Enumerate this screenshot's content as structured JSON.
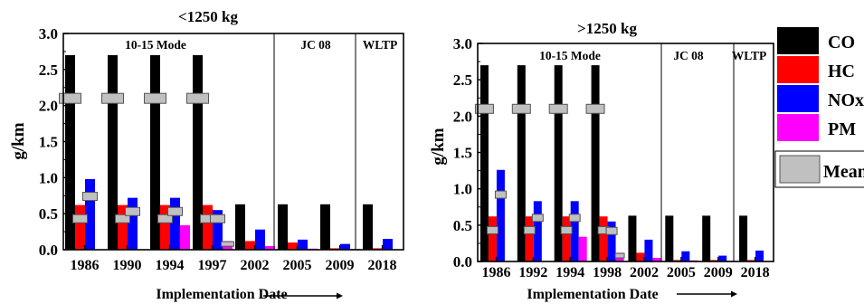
{
  "colors": {
    "CO": "#000000",
    "HC": "#ff0000",
    "NOx": "#0000ff",
    "PM": "#ff00ff",
    "Mean": "#c0c0c0"
  },
  "legend": {
    "entries": [
      {
        "key": "CO",
        "label": "CO"
      },
      {
        "key": "HC",
        "label": "HC"
      },
      {
        "key": "NOx",
        "label": "NOx"
      },
      {
        "key": "PM",
        "label": "PM"
      },
      {
        "key": "Mean",
        "label": "Mean"
      }
    ]
  },
  "chart_data": [
    {
      "type": "bar",
      "title": "<1250 kg",
      "ylabel": "g/km",
      "xlabel": "Implementation Date",
      "ylim": [
        0,
        3.0
      ],
      "yticks": [
        "0.0",
        "0.5",
        "1.0",
        "1.5",
        "2.0",
        "2.5",
        "3.0"
      ],
      "categories": [
        "1986",
        "1990",
        "1994",
        "1997",
        "2002",
        "2005",
        "2009",
        "2018"
      ],
      "regions": [
        {
          "label": "10-15 Mode"
        },
        {
          "label": "JC 08"
        },
        {
          "label": "WLTP"
        }
      ],
      "series": [
        {
          "name": "CO",
          "values": [
            2.7,
            2.7,
            2.7,
            2.7,
            0.63,
            0.63,
            0.63,
            0.63
          ]
        },
        {
          "name": "HC",
          "values": [
            0.62,
            0.62,
            0.62,
            0.62,
            0.12,
            0.1,
            0.02,
            0.02
          ]
        },
        {
          "name": "NOx",
          "values": [
            0.98,
            0.72,
            0.72,
            0.55,
            0.28,
            0.14,
            0.08,
            0.15
          ]
        },
        {
          "name": "PM",
          "values": [
            0,
            0,
            0.34,
            0.12,
            0.05,
            0.015,
            0.01,
            0.005
          ]
        }
      ],
      "means": {
        "CO": [
          2.1,
          2.1,
          2.1,
          2.1
        ],
        "HC": [
          0.43,
          0.43,
          0.43,
          0.43
        ],
        "NOx": [
          0.74,
          0.53,
          0.53,
          0.43
        ],
        "PM": [
          null,
          null,
          null,
          0.08
        ]
      }
    },
    {
      "type": "bar",
      "title": ">1250 kg",
      "ylabel": "g/km",
      "xlabel": "Implementation Date",
      "ylim": [
        0,
        3.0
      ],
      "yticks": [
        "0.0",
        "0.5",
        "1.0",
        "1.5",
        "2.0",
        "2.5",
        "3.0"
      ],
      "categories": [
        "1986",
        "1992",
        "1994",
        "1998",
        "2002",
        "2005",
        "2009",
        "2018"
      ],
      "regions": [
        {
          "label": "10-15 Mode"
        },
        {
          "label": "JC 08"
        },
        {
          "label": "WLTP"
        }
      ],
      "series": [
        {
          "name": "CO",
          "values": [
            2.7,
            2.7,
            2.7,
            2.7,
            0.63,
            0.63,
            0.63,
            0.63
          ]
        },
        {
          "name": "HC",
          "values": [
            0.62,
            0.62,
            0.62,
            0.62,
            0.12,
            0.02,
            0.02,
            0.02
          ]
        },
        {
          "name": "NOx",
          "values": [
            1.26,
            0.83,
            0.83,
            0.55,
            0.3,
            0.14,
            0.08,
            0.15
          ]
        },
        {
          "name": "PM",
          "values": [
            0,
            0,
            0.34,
            0.12,
            0.05,
            0.015,
            0.01,
            0.005
          ]
        }
      ],
      "means": {
        "CO": [
          2.1,
          2.1,
          2.1,
          2.1
        ],
        "HC": [
          0.43,
          0.43,
          0.43,
          0.43
        ],
        "NOx": [
          0.92,
          0.6,
          0.6,
          0.42
        ],
        "PM": [
          null,
          null,
          null,
          0.08
        ]
      }
    }
  ]
}
